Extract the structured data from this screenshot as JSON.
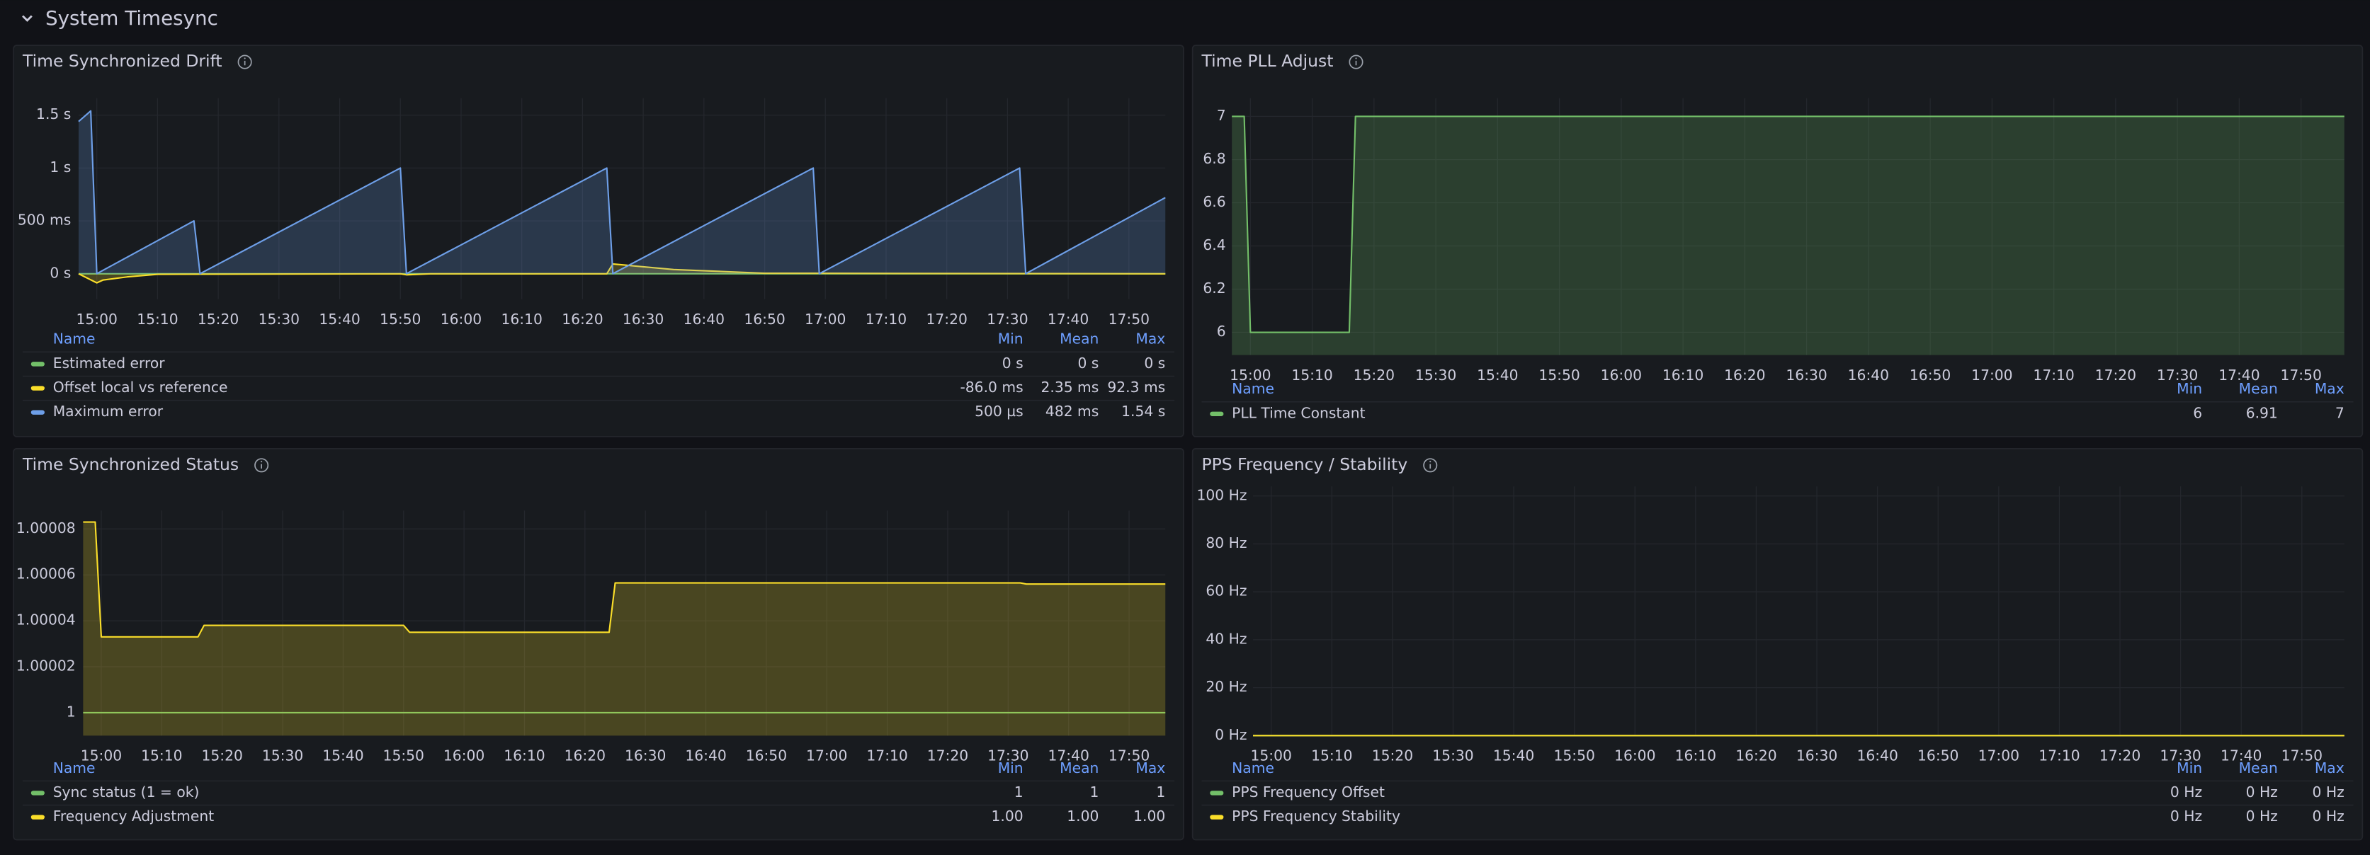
{
  "header": {
    "title": "System Timesync"
  },
  "panels": [
    {
      "title": "Time Synchronized Drift",
      "chart": {
        "type": "line",
        "grid": true,
        "xlim": [
          "14:57",
          "17:56"
        ],
        "xticks": [
          "15:00",
          "15:10",
          "15:20",
          "15:30",
          "15:40",
          "15:50",
          "16:00",
          "16:10",
          "16:20",
          "16:30",
          "16:40",
          "16:50",
          "17:00",
          "17:10",
          "17:20",
          "17:30",
          "17:40",
          "17:50"
        ],
        "ylim": [
          -0.24,
          1.66
        ],
        "yticks": [
          {
            "value": 0,
            "label": "0 s"
          },
          {
            "value": 0.5,
            "label": "500 ms"
          },
          {
            "value": 1,
            "label": "1 s"
          },
          {
            "value": 1.5,
            "label": "1.5 s"
          }
        ],
        "series": [
          {
            "name": "Estimated error",
            "color": "#73bf69",
            "fill": false,
            "x": [
              "14:57",
              "17:56"
            ],
            "values": [
              0,
              0
            ]
          },
          {
            "name": "Offset local vs reference",
            "color": "#fade2a",
            "fill": true,
            "x": [
              "14:57",
              "15:00",
              "15:01",
              "15:05",
              "15:10",
              "15:50",
              "15:51",
              "15:55",
              "16:24",
              "16:25",
              "16:35",
              "16:50",
              "17:56"
            ],
            "values": [
              0,
              -0.086,
              -0.06,
              -0.03,
              -0.005,
              0,
              -0.01,
              0,
              0,
              0.0923,
              0.04,
              0.005,
              0
            ]
          },
          {
            "name": "Maximum error",
            "color": "#6e9fe8",
            "fill": true,
            "x": [
              "14:57",
              "14:59",
              "15:00",
              "15:16",
              "15:17",
              "15:50",
              "15:51",
              "16:24",
              "16:25",
              "16:58",
              "16:59",
              "17:32",
              "17:33",
              "17:56"
            ],
            "values": [
              1.44,
              1.54,
              0.0005,
              0.5,
              0.0005,
              1.0,
              0.0005,
              1.0,
              0.0005,
              1.0,
              0.0005,
              1.0,
              0.0005,
              0.72
            ]
          }
        ]
      },
      "legend": {
        "columns": [
          "Name",
          "Min",
          "Mean",
          "Max"
        ],
        "rows": [
          [
            "0 s",
            "0 s",
            "0 s"
          ],
          [
            "-86.0 ms",
            "2.35 ms",
            "92.3 ms"
          ],
          [
            "500 µs",
            "482 ms",
            "1.54 s"
          ]
        ]
      }
    },
    {
      "title": "Time PLL Adjust",
      "chart": {
        "type": "line",
        "grid": true,
        "xlim": [
          "14:57",
          "17:57"
        ],
        "xticks": [
          "15:00",
          "15:10",
          "15:20",
          "15:30",
          "15:40",
          "15:50",
          "16:00",
          "16:10",
          "16:20",
          "16:30",
          "16:40",
          "16:50",
          "17:00",
          "17:10",
          "17:20",
          "17:30",
          "17:40",
          "17:50"
        ],
        "ylim": [
          5.895,
          7.084
        ],
        "yticks": [
          6,
          6.2,
          6.4,
          6.6,
          6.8,
          7
        ],
        "series": [
          {
            "name": "PLL Time Constant",
            "color": "#73bf69",
            "fill": true,
            "x": [
              "14:57",
              "14:59",
              "15:00",
              "15:16",
              "15:17",
              "17:57"
            ],
            "values": [
              7,
              7,
              6,
              6,
              7,
              7
            ]
          }
        ]
      },
      "legend": {
        "columns": [
          "Name",
          "Min",
          "Mean",
          "Max"
        ],
        "rows": [
          [
            "6",
            "6.91",
            "7"
          ]
        ]
      }
    },
    {
      "title": "Time Synchronized Status",
      "chart": {
        "type": "line",
        "grid": true,
        "xlim": [
          "14:57",
          "17:56"
        ],
        "xticks": [
          "15:00",
          "15:10",
          "15:20",
          "15:30",
          "15:40",
          "15:50",
          "16:00",
          "16:10",
          "16:20",
          "16:30",
          "16:40",
          "16:50",
          "17:00",
          "17:10",
          "17:20",
          "17:30",
          "17:40",
          "17:50"
        ],
        "ylim": [
          0.99999,
          1.000088
        ],
        "yticks": [
          1,
          1.00002,
          1.00004,
          1.00006,
          1.00008
        ],
        "series": [
          {
            "name": "Sync status (1 = ok)",
            "color": "#73bf69",
            "fill": false,
            "x": [
              "14:57",
              "17:56"
            ],
            "values": [
              1,
              1
            ]
          },
          {
            "name": "Frequency Adjustment",
            "color": "#fade2a",
            "fill": true,
            "x": [
              "14:57",
              "14:59",
              "15:00",
              "15:16",
              "15:17",
              "15:50",
              "15:51",
              "16:24",
              "16:25",
              "17:32",
              "17:33",
              "17:56"
            ],
            "values": [
              1.000083,
              1.000083,
              1.000033,
              1.000033,
              1.000038,
              1.000038,
              1.000035,
              1.000035,
              1.0000565,
              1.0000565,
              1.000056,
              1.000056
            ]
          }
        ]
      },
      "legend": {
        "columns": [
          "Name",
          "Min",
          "Mean",
          "Max"
        ],
        "rows": [
          [
            "1",
            "1",
            "1"
          ],
          [
            "1.00",
            "1.00",
            "1.00"
          ]
        ]
      }
    },
    {
      "title": "PPS Frequency / Stability",
      "chart": {
        "type": "line",
        "grid": true,
        "xlim": [
          "14:57",
          "17:57"
        ],
        "xticks": [
          "15:00",
          "15:10",
          "15:20",
          "15:30",
          "15:40",
          "15:50",
          "16:00",
          "16:10",
          "16:20",
          "16:30",
          "16:40",
          "16:50",
          "17:00",
          "17:10",
          "17:20",
          "17:30",
          "17:40",
          "17:50"
        ],
        "ylim": [
          0,
          104
        ],
        "yticks": [
          {
            "value": 0,
            "label": "0 Hz"
          },
          {
            "value": 20,
            "label": "20 Hz"
          },
          {
            "value": 40,
            "label": "40 Hz"
          },
          {
            "value": 60,
            "label": "60 Hz"
          },
          {
            "value": 80,
            "label": "80 Hz"
          },
          {
            "value": 100,
            "label": "100 Hz"
          }
        ],
        "series": [
          {
            "name": "PPS Frequency Offset",
            "color": "#73bf69",
            "fill": false,
            "x": [
              "14:57",
              "17:57"
            ],
            "values": [
              0,
              0
            ]
          },
          {
            "name": "PPS Frequency Stability",
            "color": "#fade2a",
            "fill": false,
            "x": [
              "14:57",
              "17:57"
            ],
            "values": [
              0,
              0
            ]
          }
        ]
      },
      "legend": {
        "columns": [
          "Name",
          "Min",
          "Mean",
          "Max"
        ],
        "rows": [
          [
            "0 Hz",
            "0 Hz",
            "0 Hz"
          ],
          [
            "0 Hz",
            "0 Hz",
            "0 Hz"
          ]
        ]
      }
    }
  ]
}
